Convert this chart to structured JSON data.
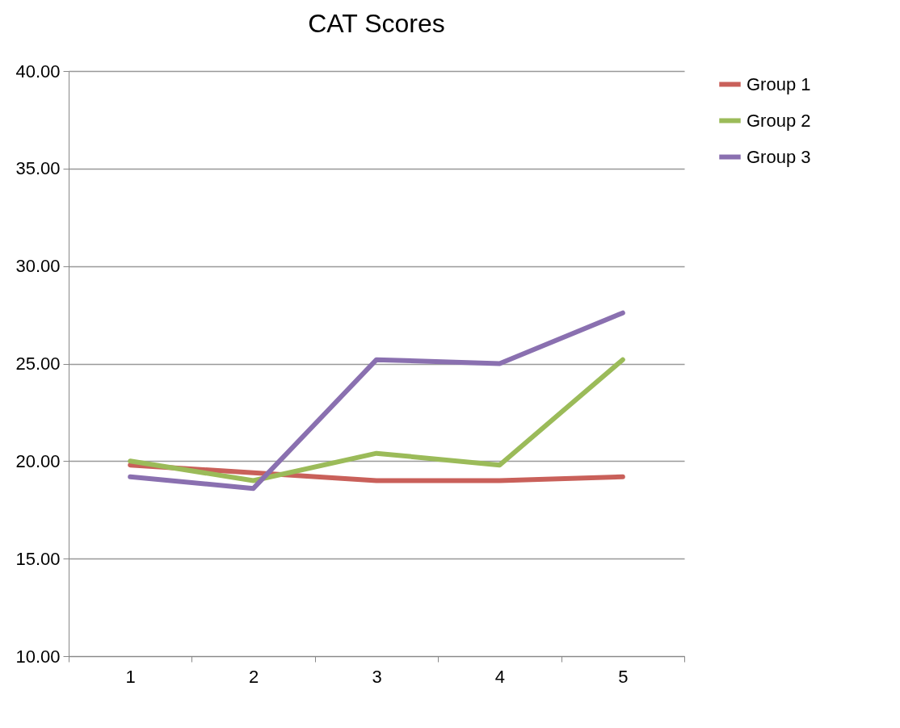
{
  "chart_data": {
    "type": "line",
    "title": "CAT Scores",
    "categories": [
      "1",
      "2",
      "3",
      "4",
      "5"
    ],
    "series": [
      {
        "name": "Group 1",
        "color": "#c9605a",
        "values": [
          19.8,
          19.4,
          19.0,
          19.0,
          19.2
        ]
      },
      {
        "name": "Group 2",
        "color": "#9bbb59",
        "values": [
          20.0,
          19.0,
          20.4,
          19.8,
          25.2
        ]
      },
      {
        "name": "Group 3",
        "color": "#8a70b0",
        "values": [
          19.2,
          18.6,
          25.2,
          25.0,
          27.6
        ]
      }
    ],
    "ylim": [
      10,
      40
    ],
    "yticks": [
      {
        "value": 10,
        "label": "10.00"
      },
      {
        "value": 15,
        "label": "15.00"
      },
      {
        "value": 20,
        "label": "20.00"
      },
      {
        "value": 25,
        "label": "25.00"
      },
      {
        "value": 30,
        "label": "30.00"
      },
      {
        "value": 35,
        "label": "35.00"
      },
      {
        "value": 40,
        "label": "40.00"
      }
    ],
    "grid": "y",
    "legend": "right",
    "marker": "none",
    "line_style": "solid"
  }
}
